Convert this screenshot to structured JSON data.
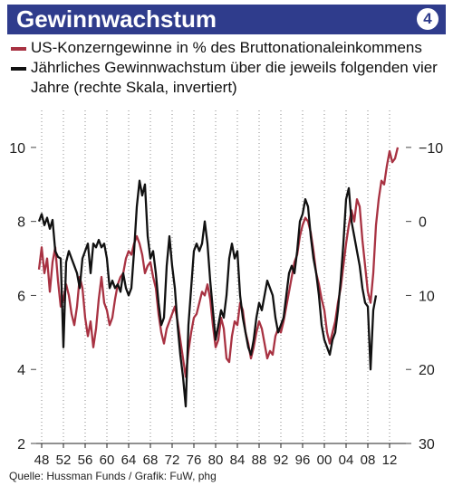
{
  "header": {
    "title": "Gewinnwachstum",
    "badge": "4",
    "background_color": "#2f3c8c"
  },
  "legend": [
    {
      "label": "US-Konzerngewinne in % des Bruttonationaleinkommens",
      "color": "#a83242"
    },
    {
      "label": "Jährliches Gewinnwachstum über die jeweils folgenden vier Jahre (rechte Skala, invertiert)",
      "color": "#111111"
    }
  ],
  "source": "Quelle: Hussman Funds / Grafik: FuW, phg",
  "chart_data": {
    "type": "line",
    "grid": "vertical dotted",
    "x_ticks": [
      "48",
      "52",
      "56",
      "60",
      "64",
      "68",
      "72",
      "76",
      "80",
      "84",
      "88",
      "92",
      "96",
      "00",
      "04",
      "08",
      "12"
    ],
    "x_tick_values": [
      1948,
      1952,
      1956,
      1960,
      1964,
      1968,
      1972,
      1976,
      1980,
      1984,
      1988,
      1992,
      1996,
      2000,
      2004,
      2008,
      2012
    ],
    "xlim": [
      1947,
      2015
    ],
    "left_axis": {
      "ticks": [
        "10",
        "8",
        "6",
        "4",
        "2"
      ],
      "tick_values": [
        10,
        8,
        6,
        4,
        2
      ],
      "ylim": [
        2,
        11
      ]
    },
    "right_axis": {
      "ticks": [
        "−10",
        "0",
        "10",
        "20",
        "30"
      ],
      "tick_values": [
        -10,
        0,
        10,
        20,
        30
      ],
      "ylim": [
        -10,
        30
      ],
      "inverted": true
    },
    "series": [
      {
        "name": "US-Konzerngewinne in % des Bruttonationaleinkommens",
        "axis": "left",
        "color": "#a83242",
        "points": [
          [
            1947.5,
            6.7
          ],
          [
            1948.0,
            7.3
          ],
          [
            1948.5,
            6.6
          ],
          [
            1949.0,
            7.0
          ],
          [
            1949.5,
            6.1
          ],
          [
            1950.0,
            6.9
          ],
          [
            1950.5,
            7.3
          ],
          [
            1951.0,
            6.4
          ],
          [
            1951.5,
            5.7
          ],
          [
            1952.0,
            5.9
          ],
          [
            1952.5,
            6.3
          ],
          [
            1953.0,
            6.0
          ],
          [
            1953.5,
            5.5
          ],
          [
            1954.0,
            5.2
          ],
          [
            1954.5,
            5.7
          ],
          [
            1955.0,
            6.5
          ],
          [
            1955.5,
            6.2
          ],
          [
            1956.0,
            5.4
          ],
          [
            1956.5,
            4.9
          ],
          [
            1957.0,
            5.3
          ],
          [
            1957.5,
            4.6
          ],
          [
            1958.0,
            5.1
          ],
          [
            1958.5,
            5.9
          ],
          [
            1959.0,
            6.5
          ],
          [
            1959.5,
            5.8
          ],
          [
            1960.0,
            5.6
          ],
          [
            1960.5,
            5.2
          ],
          [
            1961.0,
            5.4
          ],
          [
            1961.5,
            5.9
          ],
          [
            1962.0,
            6.3
          ],
          [
            1962.5,
            6.5
          ],
          [
            1963.0,
            6.6
          ],
          [
            1963.5,
            7.0
          ],
          [
            1964.0,
            7.2
          ],
          [
            1964.5,
            7.1
          ],
          [
            1965.0,
            7.4
          ],
          [
            1965.5,
            7.6
          ],
          [
            1966.0,
            7.4
          ],
          [
            1966.5,
            7.1
          ],
          [
            1967.0,
            6.6
          ],
          [
            1967.5,
            6.8
          ],
          [
            1968.0,
            6.9
          ],
          [
            1968.5,
            6.5
          ],
          [
            1969.0,
            6.2
          ],
          [
            1969.5,
            5.5
          ],
          [
            1970.0,
            5.0
          ],
          [
            1970.5,
            4.7
          ],
          [
            1971.0,
            5.1
          ],
          [
            1971.5,
            5.3
          ],
          [
            1972.0,
            5.5
          ],
          [
            1972.5,
            5.7
          ],
          [
            1973.0,
            5.3
          ],
          [
            1973.5,
            4.8
          ],
          [
            1974.0,
            4.3
          ],
          [
            1974.5,
            3.8
          ],
          [
            1975.0,
            4.5
          ],
          [
            1975.5,
            5.0
          ],
          [
            1976.0,
            5.4
          ],
          [
            1976.5,
            5.5
          ],
          [
            1977.0,
            5.8
          ],
          [
            1977.5,
            6.1
          ],
          [
            1978.0,
            6.0
          ],
          [
            1978.5,
            6.3
          ],
          [
            1979.0,
            5.9
          ],
          [
            1979.5,
            5.2
          ],
          [
            1980.0,
            4.6
          ],
          [
            1980.5,
            4.8
          ],
          [
            1981.0,
            5.4
          ],
          [
            1981.5,
            5.1
          ],
          [
            1982.0,
            4.3
          ],
          [
            1982.5,
            4.2
          ],
          [
            1983.0,
            4.9
          ],
          [
            1983.5,
            5.3
          ],
          [
            1984.0,
            5.2
          ],
          [
            1984.5,
            5.8
          ],
          [
            1985.0,
            5.6
          ],
          [
            1985.5,
            5.0
          ],
          [
            1986.0,
            4.7
          ],
          [
            1986.5,
            4.3
          ],
          [
            1987.0,
            4.6
          ],
          [
            1987.5,
            5.0
          ],
          [
            1988.0,
            5.3
          ],
          [
            1988.5,
            5.1
          ],
          [
            1989.0,
            4.7
          ],
          [
            1989.5,
            4.3
          ],
          [
            1990.0,
            4.5
          ],
          [
            1990.5,
            4.4
          ],
          [
            1991.0,
            4.9
          ],
          [
            1991.5,
            5.1
          ],
          [
            1992.0,
            5.0
          ],
          [
            1992.5,
            5.3
          ],
          [
            1993.0,
            5.7
          ],
          [
            1993.5,
            6.1
          ],
          [
            1994.0,
            6.5
          ],
          [
            1994.5,
            6.9
          ],
          [
            1995.0,
            7.1
          ],
          [
            1995.5,
            7.6
          ],
          [
            1996.0,
            7.9
          ],
          [
            1996.5,
            8.1
          ],
          [
            1997.0,
            8.0
          ],
          [
            1997.5,
            7.7
          ],
          [
            1998.0,
            7.2
          ],
          [
            1998.5,
            6.6
          ],
          [
            1999.0,
            6.3
          ],
          [
            1999.5,
            5.9
          ],
          [
            2000.0,
            5.6
          ],
          [
            2000.5,
            5.0
          ],
          [
            2001.0,
            4.7
          ],
          [
            2001.5,
            5.0
          ],
          [
            2002.0,
            5.3
          ],
          [
            2002.5,
            5.8
          ],
          [
            2003.0,
            6.2
          ],
          [
            2003.5,
            6.8
          ],
          [
            2004.0,
            7.4
          ],
          [
            2004.5,
            7.9
          ],
          [
            2005.0,
            8.3
          ],
          [
            2005.5,
            8.0
          ],
          [
            2006.0,
            8.6
          ],
          [
            2006.5,
            8.4
          ],
          [
            2007.0,
            7.5
          ],
          [
            2007.5,
            6.8
          ],
          [
            2008.0,
            6.1
          ],
          [
            2008.5,
            5.8
          ],
          [
            2009.0,
            6.6
          ],
          [
            2009.5,
            7.9
          ],
          [
            2010.0,
            8.6
          ],
          [
            2010.5,
            9.1
          ],
          [
            2011.0,
            9.0
          ],
          [
            2011.5,
            9.5
          ],
          [
            2012.0,
            9.9
          ],
          [
            2012.5,
            9.6
          ],
          [
            2013.0,
            9.7
          ],
          [
            2013.5,
            10.0
          ]
        ]
      },
      {
        "name": "Jährliches Gewinnwachstum über die jeweils folgenden vier Jahre",
        "axis": "right",
        "color": "#111111",
        "points": [
          [
            1947.5,
            0.0
          ],
          [
            1948.0,
            -1.0
          ],
          [
            1948.5,
            0.5
          ],
          [
            1949.0,
            -0.5
          ],
          [
            1949.5,
            1.0
          ],
          [
            1950.0,
            -0.2
          ],
          [
            1950.5,
            4.0
          ],
          [
            1951.0,
            4.8
          ],
          [
            1951.5,
            5.0
          ],
          [
            1952.0,
            17.0
          ],
          [
            1952.5,
            5.5
          ],
          [
            1953.0,
            4.0
          ],
          [
            1953.5,
            5.0
          ],
          [
            1954.0,
            6.0
          ],
          [
            1954.5,
            7.0
          ],
          [
            1955.0,
            9.0
          ],
          [
            1955.5,
            5.0
          ],
          [
            1956.0,
            4.0
          ],
          [
            1956.5,
            3.0
          ],
          [
            1957.0,
            7.0
          ],
          [
            1957.5,
            3.0
          ],
          [
            1958.0,
            3.5
          ],
          [
            1958.5,
            2.5
          ],
          [
            1959.0,
            3.5
          ],
          [
            1959.5,
            3.0
          ],
          [
            1960.0,
            5.0
          ],
          [
            1960.5,
            9.0
          ],
          [
            1961.0,
            8.0
          ],
          [
            1961.5,
            9.0
          ],
          [
            1962.0,
            8.5
          ],
          [
            1962.5,
            9.5
          ],
          [
            1963.0,
            7.0
          ],
          [
            1963.5,
            9.0
          ],
          [
            1964.0,
            10.0
          ],
          [
            1964.5,
            9.0
          ],
          [
            1965.0,
            4.0
          ],
          [
            1965.5,
            -2.0
          ],
          [
            1966.0,
            -5.5
          ],
          [
            1966.5,
            -3.5
          ],
          [
            1967.0,
            -5.0
          ],
          [
            1967.5,
            2.0
          ],
          [
            1968.0,
            5.0
          ],
          [
            1968.5,
            4.0
          ],
          [
            1969.0,
            7.0
          ],
          [
            1969.5,
            11.0
          ],
          [
            1970.0,
            14.0
          ],
          [
            1970.5,
            13.0
          ],
          [
            1971.0,
            6.0
          ],
          [
            1971.5,
            2.0
          ],
          [
            1972.0,
            6.0
          ],
          [
            1972.5,
            9.0
          ],
          [
            1973.0,
            14.0
          ],
          [
            1973.5,
            18.0
          ],
          [
            1974.0,
            21.0
          ],
          [
            1974.5,
            25.0
          ],
          [
            1975.0,
            14.0
          ],
          [
            1975.5,
            9.0
          ],
          [
            1976.0,
            4.0
          ],
          [
            1976.5,
            3.0
          ],
          [
            1977.0,
            4.0
          ],
          [
            1977.5,
            3.0
          ],
          [
            1978.0,
            0.0
          ],
          [
            1978.5,
            3.0
          ],
          [
            1979.0,
            8.0
          ],
          [
            1979.5,
            12.0
          ],
          [
            1980.0,
            16.0
          ],
          [
            1980.5,
            14.0
          ],
          [
            1981.0,
            12.0
          ],
          [
            1981.5,
            13.0
          ],
          [
            1982.0,
            10.0
          ],
          [
            1982.5,
            5.0
          ],
          [
            1983.0,
            3.0
          ],
          [
            1983.5,
            5.0
          ],
          [
            1984.0,
            4.0
          ],
          [
            1984.5,
            10.0
          ],
          [
            1985.0,
            13.0
          ],
          [
            1985.5,
            15.0
          ],
          [
            1986.0,
            17.0
          ],
          [
            1986.5,
            18.0
          ],
          [
            1987.0,
            16.0
          ],
          [
            1987.5,
            13.0
          ],
          [
            1988.0,
            11.0
          ],
          [
            1988.5,
            12.0
          ],
          [
            1989.0,
            10.0
          ],
          [
            1989.5,
            8.0
          ],
          [
            1990.0,
            9.0
          ],
          [
            1990.5,
            10.0
          ],
          [
            1991.0,
            13.0
          ],
          [
            1991.5,
            15.0
          ],
          [
            1992.0,
            14.0
          ],
          [
            1992.5,
            13.0
          ],
          [
            1993.0,
            10.0
          ],
          [
            1993.5,
            7.0
          ],
          [
            1994.0,
            6.0
          ],
          [
            1994.5,
            7.0
          ],
          [
            1995.0,
            4.0
          ],
          [
            1995.5,
            0.0
          ],
          [
            1996.0,
            -1.0
          ],
          [
            1996.5,
            -3.0
          ],
          [
            1997.0,
            -2.0
          ],
          [
            1997.5,
            2.0
          ],
          [
            1998.0,
            5.0
          ],
          [
            1998.5,
            7.0
          ],
          [
            1999.0,
            10.0
          ],
          [
            1999.5,
            14.0
          ],
          [
            2000.0,
            16.0
          ],
          [
            2000.5,
            17.0
          ],
          [
            2001.0,
            18.0
          ],
          [
            2001.5,
            16.0
          ],
          [
            2002.0,
            15.0
          ],
          [
            2002.5,
            12.0
          ],
          [
            2003.0,
            8.0
          ],
          [
            2003.5,
            3.0
          ],
          [
            2004.0,
            -3.0
          ],
          [
            2004.5,
            -4.5
          ],
          [
            2005.0,
            0.0
          ],
          [
            2005.5,
            2.0
          ],
          [
            2006.0,
            4.0
          ],
          [
            2006.5,
            6.0
          ],
          [
            2007.0,
            9.0
          ],
          [
            2007.5,
            11.0
          ],
          [
            2008.0,
            11.5
          ],
          [
            2008.5,
            20.0
          ],
          [
            2009.0,
            12.0
          ],
          [
            2009.5,
            10.0
          ]
        ]
      }
    ]
  }
}
